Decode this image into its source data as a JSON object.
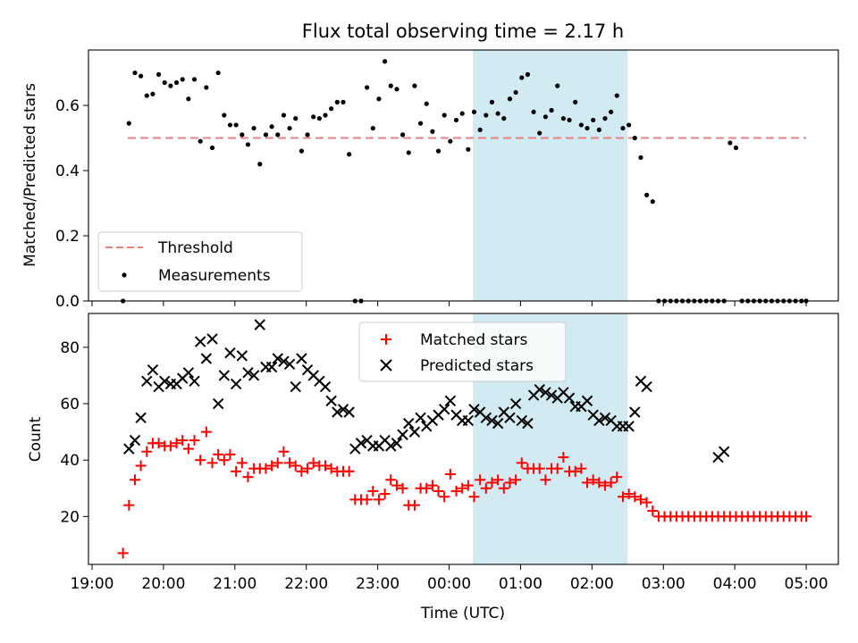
{
  "chart_data": {
    "type": "scatter",
    "title": "Flux total observing time = 2.17 h",
    "xlabel": "Time (UTC)",
    "x_tick_labels": [
      "19:00",
      "20:00",
      "21:00",
      "22:00",
      "23:00",
      "00:00",
      "01:00",
      "02:00",
      "03:00",
      "04:00",
      "05:00"
    ],
    "x_range_hours": [
      18.95,
      29.45
    ],
    "highlight_span": {
      "start": "00:20",
      "end": "02:30",
      "color": "#add8e6"
    },
    "top": {
      "ylabel": "Matched/Predicted stars",
      "ylim": [
        0,
        0.77
      ],
      "y_ticks": [
        "0.0",
        "0.2",
        "0.4",
        "0.6"
      ],
      "threshold": {
        "name": "Threshold",
        "value": 0.5,
        "x_start": "19:30",
        "x_end": "05:00",
        "color": "#f08080"
      },
      "measurements": {
        "name": "Measurements",
        "color": "#000000",
        "x": [
          "19:26",
          "19:31",
          "19:36",
          "19:41",
          "19:46",
          "19:51",
          "19:56",
          "20:01",
          "20:06",
          "20:11",
          "20:16",
          "20:21",
          "20:26",
          "20:31",
          "20:36",
          "20:41",
          "20:46",
          "20:51",
          "20:56",
          "21:01",
          "21:06",
          "21:11",
          "21:16",
          "21:21",
          "21:26",
          "21:31",
          "21:36",
          "21:41",
          "21:46",
          "21:51",
          "21:56",
          "22:01",
          "22:06",
          "22:11",
          "22:16",
          "22:21",
          "22:26",
          "22:31",
          "22:36",
          "22:41",
          "22:46",
          "22:51",
          "22:56",
          "23:01",
          "23:06",
          "23:11",
          "23:16",
          "23:21",
          "23:26",
          "23:31",
          "23:36",
          "23:41",
          "23:46",
          "23:51",
          "23:56",
          "00:01",
          "00:06",
          "00:11",
          "00:16",
          "00:21",
          "00:26",
          "00:31",
          "00:36",
          "00:41",
          "00:46",
          "00:51",
          "00:56",
          "01:01",
          "01:06",
          "01:11",
          "01:16",
          "01:21",
          "01:26",
          "01:31",
          "01:36",
          "01:41",
          "01:46",
          "01:51",
          "01:56",
          "02:01",
          "02:06",
          "02:11",
          "02:16",
          "02:21",
          "02:26",
          "02:31",
          "02:36",
          "02:41",
          "02:46",
          "02:51",
          "02:56",
          "03:01",
          "03:06",
          "03:11",
          "03:16",
          "03:21",
          "03:26",
          "03:31",
          "03:36",
          "03:41",
          "03:46",
          "03:51",
          "03:56",
          "04:01",
          "04:06",
          "04:11",
          "04:16",
          "04:21",
          "04:26",
          "04:31",
          "04:36",
          "04:41",
          "04:46",
          "04:51",
          "04:56",
          "05:00"
        ],
        "y": [
          0.0,
          0.545,
          0.7,
          0.69,
          0.63,
          0.635,
          0.695,
          0.67,
          0.66,
          0.67,
          0.68,
          0.62,
          0.68,
          0.49,
          0.655,
          0.47,
          0.7,
          0.57,
          0.54,
          0.54,
          0.51,
          0.48,
          0.53,
          0.42,
          0.51,
          0.535,
          0.51,
          0.57,
          0.53,
          0.56,
          0.46,
          0.51,
          0.565,
          0.56,
          0.57,
          0.59,
          0.61,
          0.61,
          0.45,
          0.0,
          0.0,
          0.655,
          0.53,
          0.62,
          0.735,
          0.66,
          0.65,
          0.51,
          0.455,
          0.66,
          0.545,
          0.605,
          0.52,
          0.46,
          0.57,
          0.49,
          0.555,
          0.575,
          0.465,
          0.58,
          0.525,
          0.57,
          0.61,
          0.575,
          0.56,
          0.62,
          0.64,
          0.685,
          0.695,
          0.58,
          0.515,
          0.565,
          0.585,
          0.66,
          0.56,
          0.555,
          0.61,
          0.54,
          0.53,
          0.555,
          0.525,
          0.56,
          0.58,
          0.63,
          0.53,
          0.54,
          0.5,
          0.44,
          0.325,
          0.305,
          0.0,
          0.0,
          0.0,
          0.0,
          0.0,
          0.0,
          0.0,
          0.0,
          0.0,
          0.0,
          0.0,
          0.0,
          0.485,
          0.47,
          0.0,
          0.0,
          0.0,
          0.0,
          0.0,
          0.0,
          0.0,
          0.0,
          0.0,
          0.0,
          0.0,
          0.0
        ]
      },
      "legend": {
        "placement": "lower-left",
        "entries": [
          "Threshold",
          "Measurements"
        ]
      }
    },
    "bottom": {
      "ylabel": "Count",
      "ylim": [
        3,
        92
      ],
      "y_ticks": [
        "20",
        "40",
        "60",
        "80"
      ],
      "series": [
        {
          "name": "Matched stars",
          "marker": "+",
          "color": "#ff0000",
          "x": [
            "19:26",
            "19:31",
            "19:36",
            "19:41",
            "19:46",
            "19:51",
            "19:56",
            "20:01",
            "20:06",
            "20:11",
            "20:16",
            "20:21",
            "20:26",
            "20:31",
            "20:36",
            "20:41",
            "20:46",
            "20:51",
            "20:56",
            "21:01",
            "21:06",
            "21:11",
            "21:16",
            "21:21",
            "21:26",
            "21:31",
            "21:36",
            "21:41",
            "21:46",
            "21:51",
            "21:56",
            "22:01",
            "22:06",
            "22:11",
            "22:16",
            "22:21",
            "22:26",
            "22:31",
            "22:36",
            "22:41",
            "22:46",
            "22:51",
            "22:56",
            "23:01",
            "23:06",
            "23:11",
            "23:16",
            "23:21",
            "23:26",
            "23:31",
            "23:36",
            "23:41",
            "23:46",
            "23:51",
            "23:56",
            "00:01",
            "00:06",
            "00:11",
            "00:16",
            "00:21",
            "00:26",
            "00:31",
            "00:36",
            "00:41",
            "00:46",
            "00:51",
            "00:56",
            "01:01",
            "01:06",
            "01:11",
            "01:16",
            "01:21",
            "01:26",
            "01:31",
            "01:36",
            "01:41",
            "01:46",
            "01:51",
            "01:56",
            "02:01",
            "02:06",
            "02:11",
            "02:16",
            "02:21",
            "02:26",
            "02:31",
            "02:36",
            "02:41",
            "02:46",
            "02:51",
            "02:56",
            "03:01",
            "03:06",
            "03:11",
            "03:16",
            "03:21",
            "03:26",
            "03:31",
            "03:36",
            "03:41",
            "03:46",
            "03:51",
            "03:56",
            "04:01",
            "04:06",
            "04:11",
            "04:16",
            "04:21",
            "04:26",
            "04:31",
            "04:36",
            "04:41",
            "04:46",
            "04:51",
            "04:56",
            "05:00"
          ],
          "y": [
            7,
            24,
            33,
            38,
            43,
            46,
            46,
            45,
            45,
            46,
            47,
            44,
            47,
            40,
            50,
            39,
            42,
            40,
            42,
            36,
            39,
            34,
            37,
            37,
            37,
            38,
            39,
            43,
            39,
            38,
            36,
            37,
            39,
            38,
            38,
            37,
            36,
            36,
            36,
            26,
            26,
            26,
            29,
            26,
            28,
            33,
            31,
            30,
            24,
            24,
            30,
            30,
            31,
            29,
            27,
            35,
            29,
            30,
            31,
            27,
            33,
            30,
            32,
            33,
            30,
            32,
            33,
            39,
            37,
            37,
            37,
            33,
            37,
            37,
            41,
            36,
            36,
            37,
            32,
            33,
            32,
            31,
            32,
            34,
            27,
            28,
            27,
            26,
            25,
            22,
            20,
            20,
            20,
            20,
            20,
            20,
            20,
            20,
            20,
            20,
            20,
            20,
            20,
            20,
            20,
            20,
            20,
            20,
            20,
            20,
            20,
            20,
            20,
            20,
            20,
            20
          ]
        },
        {
          "name": "Predicted stars",
          "marker": "x",
          "color": "#000000",
          "x": [
            "19:31",
            "19:36",
            "19:41",
            "19:46",
            "19:51",
            "19:56",
            "20:01",
            "20:06",
            "20:11",
            "20:16",
            "20:21",
            "20:26",
            "20:31",
            "20:36",
            "20:41",
            "20:46",
            "20:51",
            "20:56",
            "21:01",
            "21:06",
            "21:11",
            "21:16",
            "21:21",
            "21:26",
            "21:31",
            "21:36",
            "21:41",
            "21:46",
            "21:51",
            "21:56",
            "22:01",
            "22:06",
            "22:11",
            "22:16",
            "22:21",
            "22:26",
            "22:31",
            "22:36",
            "22:41",
            "22:46",
            "22:51",
            "22:56",
            "23:01",
            "23:06",
            "23:11",
            "23:16",
            "23:21",
            "23:26",
            "23:31",
            "23:36",
            "23:41",
            "23:46",
            "23:51",
            "23:56",
            "00:01",
            "00:06",
            "00:11",
            "00:16",
            "00:21",
            "00:26",
            "00:31",
            "00:36",
            "00:41",
            "00:46",
            "00:51",
            "00:56",
            "01:01",
            "01:06",
            "01:11",
            "01:16",
            "01:21",
            "01:26",
            "01:31",
            "01:36",
            "01:41",
            "01:46",
            "01:51",
            "01:56",
            "02:01",
            "02:06",
            "02:11",
            "02:16",
            "02:21",
            "02:26",
            "02:31",
            "02:36",
            "02:41",
            "02:46",
            "03:46",
            "03:51"
          ],
          "y": [
            44,
            47,
            55,
            68,
            72,
            66,
            68,
            67,
            67,
            69,
            71,
            68,
            82,
            76,
            83,
            60,
            70,
            78,
            67,
            77,
            71,
            70,
            88,
            73,
            73,
            76,
            75,
            74,
            66,
            76,
            72,
            70,
            68,
            66,
            61,
            57,
            58,
            57,
            44,
            46,
            47,
            45,
            45,
            47,
            45,
            46,
            49,
            53,
            50,
            55,
            52,
            54,
            56,
            58,
            61,
            56,
            54,
            54,
            58,
            57,
            55,
            54,
            53,
            57,
            55,
            60,
            54,
            53,
            63,
            65,
            64,
            63,
            62,
            64,
            62,
            59,
            59,
            61,
            56,
            54,
            55,
            54,
            52,
            52,
            52,
            57,
            68,
            66,
            41,
            43
          ]
        }
      ],
      "legend": {
        "placement": "upper-center",
        "entries": [
          "Matched stars",
          "Predicted stars"
        ]
      }
    }
  }
}
